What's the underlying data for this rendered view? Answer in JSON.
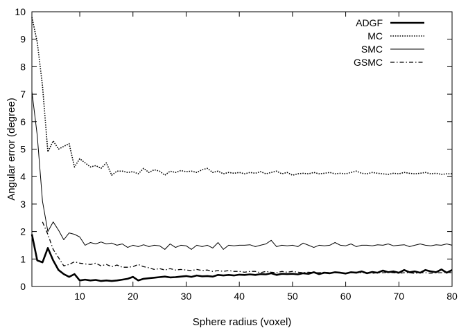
{
  "chart_data": {
    "type": "line",
    "xlabel": "Sphere radius (voxel)",
    "ylabel": "Angular error (degree)",
    "xlim": [
      1,
      80
    ],
    "ylim": [
      0,
      10
    ],
    "x_ticks": [
      10,
      20,
      30,
      40,
      50,
      60,
      70,
      80
    ],
    "y_ticks": [
      0,
      1,
      2,
      3,
      4,
      5,
      6,
      7,
      8,
      9,
      10
    ],
    "grid": false,
    "legend_position": "top-right",
    "series": [
      {
        "name": "ADGF",
        "style": "solid-thick",
        "color": "#000000",
        "x": [
          1,
          2,
          3,
          4,
          5,
          6,
          7,
          8,
          9,
          10,
          11,
          12,
          13,
          14,
          15,
          16,
          17,
          18,
          19,
          20,
          21,
          22,
          23,
          24,
          25,
          26,
          27,
          28,
          29,
          30,
          31,
          32,
          33,
          34,
          35,
          36,
          37,
          38,
          39,
          40,
          41,
          42,
          43,
          44,
          45,
          46,
          47,
          48,
          49,
          50,
          51,
          52,
          53,
          54,
          55,
          56,
          57,
          58,
          59,
          60,
          61,
          62,
          63,
          64,
          65,
          66,
          67,
          68,
          69,
          70,
          71,
          72,
          73,
          74,
          75,
          76,
          77,
          78,
          79,
          80
        ],
        "y": [
          1.9,
          0.95,
          0.88,
          1.4,
          0.95,
          0.6,
          0.45,
          0.35,
          0.45,
          0.22,
          0.25,
          0.22,
          0.24,
          0.2,
          0.22,
          0.2,
          0.22,
          0.25,
          0.28,
          0.35,
          0.22,
          0.28,
          0.3,
          0.32,
          0.34,
          0.36,
          0.33,
          0.34,
          0.36,
          0.38,
          0.35,
          0.4,
          0.37,
          0.38,
          0.36,
          0.42,
          0.4,
          0.42,
          0.4,
          0.43,
          0.42,
          0.44,
          0.42,
          0.45,
          0.44,
          0.48,
          0.42,
          0.46,
          0.45,
          0.46,
          0.44,
          0.48,
          0.46,
          0.52,
          0.45,
          0.5,
          0.48,
          0.52,
          0.5,
          0.47,
          0.52,
          0.5,
          0.55,
          0.48,
          0.53,
          0.5,
          0.58,
          0.52,
          0.55,
          0.5,
          0.6,
          0.52,
          0.55,
          0.5,
          0.6,
          0.55,
          0.52,
          0.62,
          0.5,
          0.6
        ]
      },
      {
        "name": "MC",
        "style": "dotted",
        "color": "#000000",
        "x": [
          1,
          2,
          3,
          4,
          5,
          6,
          7,
          8,
          9,
          10,
          11,
          12,
          13,
          14,
          15,
          16,
          17,
          18,
          19,
          20,
          21,
          22,
          23,
          24,
          25,
          26,
          27,
          28,
          29,
          30,
          31,
          32,
          33,
          34,
          35,
          36,
          37,
          38,
          39,
          40,
          41,
          42,
          43,
          44,
          45,
          46,
          47,
          48,
          49,
          50,
          51,
          52,
          53,
          54,
          55,
          56,
          57,
          58,
          59,
          60,
          61,
          62,
          63,
          64,
          65,
          66,
          67,
          68,
          69,
          70,
          71,
          72,
          73,
          74,
          75,
          76,
          77,
          78,
          79,
          80
        ],
        "y": [
          9.8,
          8.9,
          7.3,
          4.9,
          5.3,
          5.0,
          5.1,
          5.2,
          4.35,
          4.65,
          4.5,
          4.35,
          4.4,
          4.3,
          4.5,
          4.05,
          4.2,
          4.2,
          4.15,
          4.18,
          4.1,
          4.3,
          4.15,
          4.25,
          4.2,
          4.05,
          4.2,
          4.15,
          4.22,
          4.18,
          4.2,
          4.15,
          4.25,
          4.3,
          4.15,
          4.2,
          4.1,
          4.15,
          4.12,
          4.15,
          4.1,
          4.15,
          4.12,
          4.18,
          4.1,
          4.15,
          4.2,
          4.1,
          4.15,
          4.05,
          4.1,
          4.12,
          4.1,
          4.15,
          4.1,
          4.12,
          4.15,
          4.1,
          4.12,
          4.1,
          4.15,
          4.2,
          4.12,
          4.1,
          4.15,
          4.12,
          4.1,
          4.08,
          4.12,
          4.1,
          4.15,
          4.12,
          4.1,
          4.12,
          4.15,
          4.1,
          4.12,
          4.08,
          4.1,
          4.1
        ]
      },
      {
        "name": "SMC",
        "style": "solid-thin",
        "color": "#000000",
        "x": [
          1,
          2,
          3,
          4,
          5,
          6,
          7,
          8,
          9,
          10,
          11,
          12,
          13,
          14,
          15,
          16,
          17,
          18,
          19,
          20,
          21,
          22,
          23,
          24,
          25,
          26,
          27,
          28,
          29,
          30,
          31,
          32,
          33,
          34,
          35,
          36,
          37,
          38,
          39,
          40,
          41,
          42,
          43,
          44,
          45,
          46,
          47,
          48,
          49,
          50,
          51,
          52,
          53,
          54,
          55,
          56,
          57,
          58,
          59,
          60,
          61,
          62,
          63,
          64,
          65,
          66,
          67,
          68,
          69,
          70,
          71,
          72,
          73,
          74,
          75,
          76,
          77,
          78,
          79,
          80
        ],
        "y": [
          7.1,
          5.5,
          3.1,
          2.0,
          2.35,
          2.05,
          1.7,
          1.95,
          1.9,
          1.8,
          1.5,
          1.6,
          1.55,
          1.62,
          1.55,
          1.58,
          1.5,
          1.55,
          1.42,
          1.5,
          1.45,
          1.52,
          1.45,
          1.5,
          1.48,
          1.35,
          1.55,
          1.42,
          1.5,
          1.48,
          1.35,
          1.5,
          1.45,
          1.5,
          1.4,
          1.6,
          1.35,
          1.5,
          1.48,
          1.5,
          1.5,
          1.52,
          1.45,
          1.5,
          1.55,
          1.68,
          1.45,
          1.5,
          1.48,
          1.5,
          1.45,
          1.58,
          1.5,
          1.42,
          1.5,
          1.48,
          1.5,
          1.6,
          1.5,
          1.48,
          1.55,
          1.45,
          1.5,
          1.5,
          1.48,
          1.52,
          1.5,
          1.55,
          1.48,
          1.5,
          1.52,
          1.45,
          1.5,
          1.55,
          1.5,
          1.48,
          1.52,
          1.5,
          1.55,
          1.5
        ]
      },
      {
        "name": "GSMC",
        "style": "dash-dot",
        "color": "#000000",
        "x": [
          3,
          4,
          5,
          6,
          7,
          8,
          9,
          10,
          11,
          12,
          13,
          14,
          15,
          16,
          17,
          18,
          19,
          20,
          21,
          22,
          23,
          24,
          25,
          26,
          27,
          28,
          29,
          30,
          31,
          32,
          33,
          34,
          35,
          36,
          37,
          38,
          39,
          40,
          41,
          42,
          43,
          44,
          45,
          46,
          47,
          48,
          49,
          50,
          51,
          52,
          53,
          54,
          55,
          56,
          57,
          58,
          59,
          60,
          61,
          62,
          63,
          64,
          65,
          66,
          67,
          68,
          69,
          70,
          71,
          72,
          73,
          74,
          75,
          76,
          77,
          78,
          79,
          80
        ],
        "y": [
          2.35,
          1.9,
          1.35,
          1.05,
          0.75,
          0.8,
          0.9,
          0.85,
          0.82,
          0.8,
          0.85,
          0.75,
          0.8,
          0.72,
          0.78,
          0.7,
          0.7,
          0.72,
          0.8,
          0.72,
          0.68,
          0.62,
          0.65,
          0.6,
          0.65,
          0.6,
          0.62,
          0.6,
          0.58,
          0.62,
          0.58,
          0.6,
          0.55,
          0.58,
          0.55,
          0.58,
          0.55,
          0.55,
          0.52,
          0.55,
          0.55,
          0.5,
          0.55,
          0.52,
          0.5,
          0.55,
          0.52,
          0.55,
          0.52,
          0.5,
          0.52,
          0.5,
          0.5,
          0.52,
          0.5,
          0.5,
          0.5,
          0.48,
          0.5,
          0.52,
          0.5,
          0.5,
          0.48,
          0.5,
          0.5,
          0.52,
          0.5,
          0.48,
          0.5,
          0.5,
          0.48,
          0.5,
          0.5,
          0.48,
          0.5,
          0.5,
          0.52,
          0.5
        ]
      }
    ]
  }
}
